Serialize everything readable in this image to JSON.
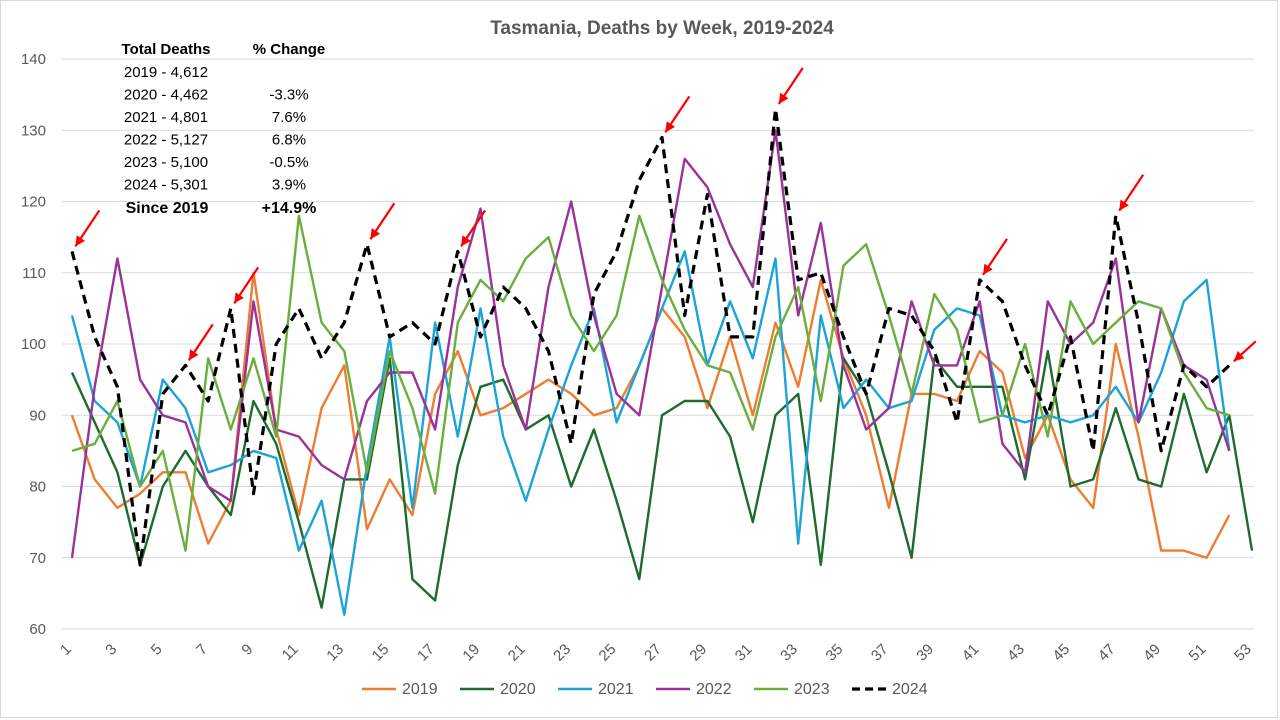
{
  "chart_data": {
    "type": "line",
    "title": "Tasmania, Deaths by Week, 2019-2024",
    "xlabel": "",
    "ylabel": "",
    "xlim": [
      1,
      53
    ],
    "ylim": [
      60,
      140
    ],
    "yticks": [
      60,
      70,
      80,
      90,
      100,
      110,
      120,
      130,
      140
    ],
    "xticks": [
      1,
      3,
      5,
      7,
      9,
      11,
      13,
      15,
      17,
      19,
      21,
      23,
      25,
      27,
      29,
      31,
      33,
      35,
      37,
      39,
      41,
      43,
      45,
      47,
      49,
      51,
      53
    ],
    "grid": "horizontal",
    "legend_position": "bottom",
    "series": [
      {
        "name": "2019",
        "color": "#ED7D31",
        "dash": false,
        "values": [
          90,
          81,
          77,
          79,
          82,
          82,
          72,
          78,
          110,
          88,
          76,
          91,
          97,
          74,
          81,
          76,
          93,
          99,
          90,
          91,
          93,
          95,
          93,
          90,
          91,
          97,
          105,
          101,
          91,
          101,
          90,
          103,
          94,
          109,
          98,
          90,
          77,
          93,
          93,
          92,
          99,
          96,
          84,
          90,
          81,
          77,
          100,
          87,
          71,
          71,
          70,
          76
        ]
      },
      {
        "name": "2020",
        "color": "#1E6B2E",
        "dash": false,
        "values": [
          96,
          89,
          82,
          69,
          80,
          85,
          80,
          76,
          92,
          86,
          75,
          63,
          81,
          81,
          98,
          67,
          64,
          83,
          94,
          95,
          88,
          90,
          80,
          88,
          78,
          67,
          90,
          92,
          92,
          87,
          75,
          90,
          93,
          69,
          98,
          93,
          82,
          70,
          98,
          94,
          94,
          94,
          81,
          99,
          80,
          81,
          91,
          81,
          80,
          93,
          82,
          90,
          71
        ]
      },
      {
        "name": "2021",
        "color": "#1CA3D8",
        "dash": false,
        "values": [
          104,
          92,
          89,
          80,
          95,
          91,
          82,
          83,
          85,
          84,
          71,
          78,
          62,
          83,
          101,
          77,
          103,
          87,
          105,
          87,
          78,
          88,
          97,
          105,
          89,
          97,
          105,
          113,
          97,
          106,
          98,
          112,
          72,
          104,
          91,
          95,
          91,
          92,
          102,
          105,
          104,
          90,
          89,
          90,
          89,
          90,
          94,
          89,
          96,
          106,
          109,
          85
        ]
      },
      {
        "name": "2022",
        "color": "#993399",
        "dash": false,
        "values": [
          70,
          94,
          112,
          95,
          90,
          89,
          80,
          78,
          106,
          88,
          87,
          83,
          81,
          92,
          96,
          96,
          88,
          108,
          119,
          97,
          88,
          108,
          120,
          104,
          93,
          90,
          108,
          126,
          122,
          114,
          108,
          130,
          104,
          117,
          97,
          88,
          91,
          106,
          97,
          97,
          106,
          86,
          82,
          106,
          100,
          103,
          112,
          89,
          105,
          97,
          95,
          85
        ]
      },
      {
        "name": "2023",
        "color": "#6AAF3D",
        "dash": false,
        "values": [
          85,
          86,
          92,
          80,
          85,
          71,
          98,
          88,
          98,
          87,
          118,
          103,
          99,
          82,
          99,
          91,
          79,
          103,
          109,
          106,
          112,
          115,
          104,
          99,
          104,
          118,
          109,
          102,
          97,
          96,
          88,
          101,
          108,
          92,
          111,
          114,
          104,
          93,
          107,
          102,
          89,
          90,
          100,
          87,
          106,
          100,
          103,
          106,
          105,
          96,
          91,
          90
        ]
      },
      {
        "name": "2024",
        "color": "#000000",
        "dash": true,
        "values": [
          113,
          101,
          94,
          69,
          93,
          97,
          92,
          105,
          79,
          100,
          105,
          98,
          103,
          114,
          101,
          103,
          100,
          113,
          101,
          108,
          105,
          99,
          86,
          107,
          113,
          123,
          129,
          104,
          121,
          101,
          101,
          133,
          109,
          110,
          101,
          93,
          105,
          104,
          99,
          89,
          109,
          106,
          97,
          90,
          101,
          85,
          118,
          103,
          85,
          97,
          94,
          97
        ]
      }
    ],
    "annotations_arrows_at_2024_weeks": [
      1,
      6,
      8,
      14,
      18,
      27,
      32,
      41,
      47,
      52
    ]
  },
  "stats_box": {
    "header_total": "Total Deaths",
    "header_change": "% Change",
    "rows": [
      {
        "label": "2019 - 4,612",
        "change": ""
      },
      {
        "label": "2020 - 4,462",
        "change": "-3.3%"
      },
      {
        "label": "2021 - 4,801",
        "change": "7.6%"
      },
      {
        "label": "2022 - 5,127",
        "change": "6.8%"
      },
      {
        "label": "2023 - 5,100",
        "change": "-0.5%"
      },
      {
        "label": "2024 - 5,301",
        "change": "3.9%"
      }
    ],
    "since_label": "Since 2019",
    "since_change": "+14.9%"
  },
  "colors": {
    "gridline": "#d9d9d9",
    "axis_text": "#595959",
    "arrow": "#FF0000"
  }
}
